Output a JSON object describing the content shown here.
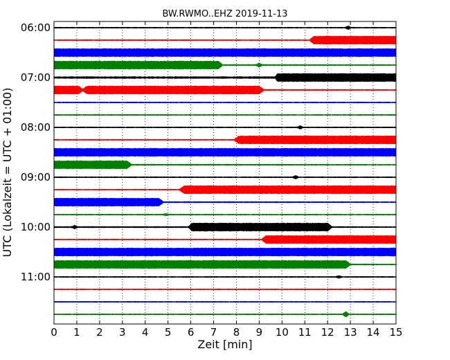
{
  "chart_data": {
    "type": "line",
    "title": "BW.RWMO..EHZ 2019-11-13",
    "xlabel": "Zeit  [min]",
    "ylabel": "UTC (Lokalzeit = UTC + 01:00)",
    "xlim": [
      0,
      15
    ],
    "x_ticks": [
      "0",
      "1",
      "2",
      "3",
      "4",
      "5",
      "6",
      "7",
      "8",
      "9",
      "10",
      "11",
      "12",
      "13",
      "14",
      "15"
    ],
    "y_ticks": [
      {
        "label": "06:00",
        "row": 0
      },
      {
        "label": "07:00",
        "row": 4
      },
      {
        "label": "08:00",
        "row": 8
      },
      {
        "label": "09:00",
        "row": 12
      },
      {
        "label": "10:00",
        "row": 16
      },
      {
        "label": "11:00",
        "row": 20
      }
    ],
    "grid": "vertical dotted",
    "colors": [
      "#000000",
      "#ff0000",
      "#0000ff",
      "#008000"
    ],
    "traces": [
      {
        "color": "black",
        "amplitude": [
          [
            0,
            0.8
          ]
        ],
        "events": [
          {
            "at": 12.9,
            "amp": 2
          }
        ]
      },
      {
        "color": "red",
        "amplitude": [
          [
            0,
            0.8
          ],
          [
            11.2,
            0.8
          ],
          [
            11.4,
            6
          ],
          [
            15,
            6
          ]
        ],
        "events": []
      },
      {
        "color": "blue",
        "amplitude": [
          [
            0,
            6
          ],
          [
            15,
            6
          ]
        ],
        "events": []
      },
      {
        "color": "green",
        "amplitude": [
          [
            0,
            6
          ],
          [
            7.2,
            6
          ],
          [
            7.4,
            1
          ],
          [
            15,
            0.8
          ]
        ],
        "events": [
          {
            "at": 9,
            "amp": 2.5
          }
        ]
      },
      {
        "color": "black",
        "amplitude": [
          [
            0,
            1.5
          ],
          [
            9.7,
            1.5
          ],
          [
            9.8,
            6
          ],
          [
            15,
            6
          ]
        ],
        "events": []
      },
      {
        "color": "red",
        "amplitude": [
          [
            0,
            6
          ],
          [
            1.1,
            6
          ],
          [
            1.25,
            1.5
          ],
          [
            1.45,
            6
          ],
          [
            9,
            6
          ],
          [
            9.2,
            1
          ],
          [
            15,
            0.8
          ]
        ],
        "events": []
      },
      {
        "color": "blue",
        "amplitude": [
          [
            0,
            0.8
          ],
          [
            15,
            0.8
          ]
        ],
        "events": []
      },
      {
        "color": "green",
        "amplitude": [
          [
            0,
            0.8
          ],
          [
            15,
            0.8
          ]
        ],
        "events": []
      },
      {
        "color": "black",
        "amplitude": [
          [
            0,
            0.8
          ],
          [
            15,
            0.8
          ]
        ],
        "events": [
          {
            "at": 10.8,
            "amp": 2
          }
        ]
      },
      {
        "color": "red",
        "amplitude": [
          [
            0,
            0.8
          ],
          [
            7.9,
            0.8
          ],
          [
            8.1,
            6
          ],
          [
            15,
            6
          ]
        ],
        "events": []
      },
      {
        "color": "blue",
        "amplitude": [
          [
            0,
            6
          ],
          [
            15,
            6
          ]
        ],
        "events": []
      },
      {
        "color": "green",
        "amplitude": [
          [
            0,
            6
          ],
          [
            3.2,
            6
          ],
          [
            3.4,
            1
          ],
          [
            15,
            0.8
          ]
        ],
        "events": []
      },
      {
        "color": "black",
        "amplitude": [
          [
            0,
            0.8
          ],
          [
            15,
            0.8
          ]
        ],
        "events": [
          {
            "at": 10.6,
            "amp": 2
          }
        ]
      },
      {
        "color": "red",
        "amplitude": [
          [
            0,
            0.8
          ],
          [
            5.5,
            0.8
          ],
          [
            5.7,
            6
          ],
          [
            15,
            6
          ]
        ],
        "events": []
      },
      {
        "color": "blue",
        "amplitude": [
          [
            0,
            6
          ],
          [
            4.6,
            6
          ],
          [
            4.8,
            1
          ],
          [
            15,
            0.8
          ]
        ],
        "events": []
      },
      {
        "color": "green",
        "amplitude": [
          [
            0,
            0.8
          ],
          [
            15,
            0.8
          ]
        ],
        "events": [
          {
            "at": 4.9,
            "amp": 1.5
          }
        ]
      },
      {
        "color": "black",
        "amplitude": [
          [
            0,
            1
          ],
          [
            5.9,
            1
          ],
          [
            6.05,
            6
          ],
          [
            12,
            6
          ],
          [
            12.2,
            1
          ],
          [
            15,
            0.8
          ]
        ],
        "events": [
          {
            "at": 0.9,
            "amp": 2
          }
        ]
      },
      {
        "color": "red",
        "amplitude": [
          [
            0,
            0.8
          ],
          [
            9.1,
            0.8
          ],
          [
            9.3,
            6
          ],
          [
            15,
            6
          ]
        ],
        "events": []
      },
      {
        "color": "blue",
        "amplitude": [
          [
            0,
            6
          ],
          [
            15,
            6
          ]
        ],
        "events": []
      },
      {
        "color": "green",
        "amplitude": [
          [
            0,
            6
          ],
          [
            12.8,
            6
          ],
          [
            13.0,
            1
          ],
          [
            15,
            0.8
          ]
        ],
        "events": []
      },
      {
        "color": "black",
        "amplitude": [
          [
            0,
            0.8
          ],
          [
            15,
            0.8
          ]
        ],
        "events": [
          {
            "at": 12.5,
            "amp": 1.5
          }
        ]
      },
      {
        "color": "red",
        "amplitude": [
          [
            0,
            0.8
          ],
          [
            15,
            0.8
          ]
        ],
        "events": []
      },
      {
        "color": "blue",
        "amplitude": [
          [
            0,
            0.8
          ],
          [
            15,
            0.8
          ]
        ],
        "events": []
      },
      {
        "color": "green",
        "amplitude": [
          [
            0,
            0.8
          ],
          [
            15,
            0.8
          ]
        ],
        "events": [
          {
            "at": 12.8,
            "amp": 3.5
          }
        ]
      }
    ]
  }
}
